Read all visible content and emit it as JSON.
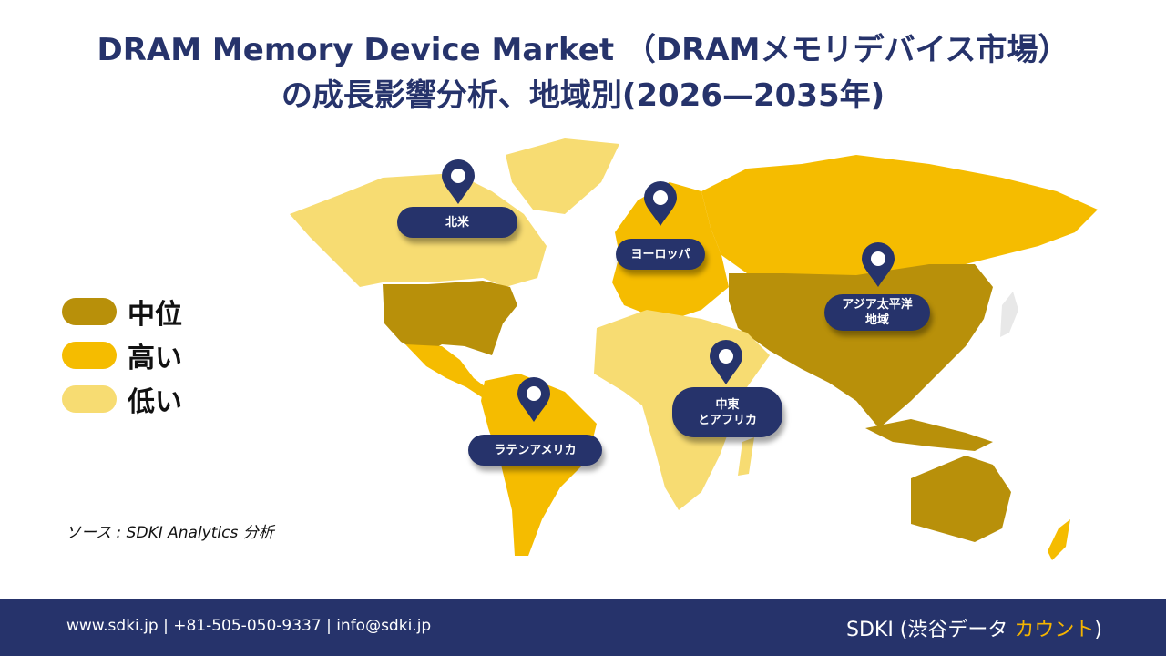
{
  "title": {
    "line1": "DRAM Memory Device Market （DRAMメモリデバイス市場）",
    "line2": "の成長影響分析、地域別(2026—2035年)"
  },
  "legend": [
    {
      "label": "中位",
      "color": "#b8900a"
    },
    {
      "label": "高い",
      "color": "#f5bc00"
    },
    {
      "label": "低い",
      "color": "#f7dc72"
    }
  ],
  "regions": [
    {
      "label": "北米",
      "level": "中位"
    },
    {
      "label": "ヨーロッパ",
      "level": "高い"
    },
    {
      "label": "アジア太平洋\n地域",
      "level": "中位"
    },
    {
      "label": "中東\nとアフリカ",
      "level": "低い"
    },
    {
      "label": "ラテンアメリカ",
      "level": "高い"
    }
  ],
  "source": "ソース : SDKI Analytics 分析",
  "footer": {
    "contact": "www.sdki.jp | +81-505-050-9337 | info@sdki.jp",
    "brand_prefix": "SDKI (渋谷データ",
    "brand_accent": "カウント",
    "brand_suffix": ")"
  }
}
